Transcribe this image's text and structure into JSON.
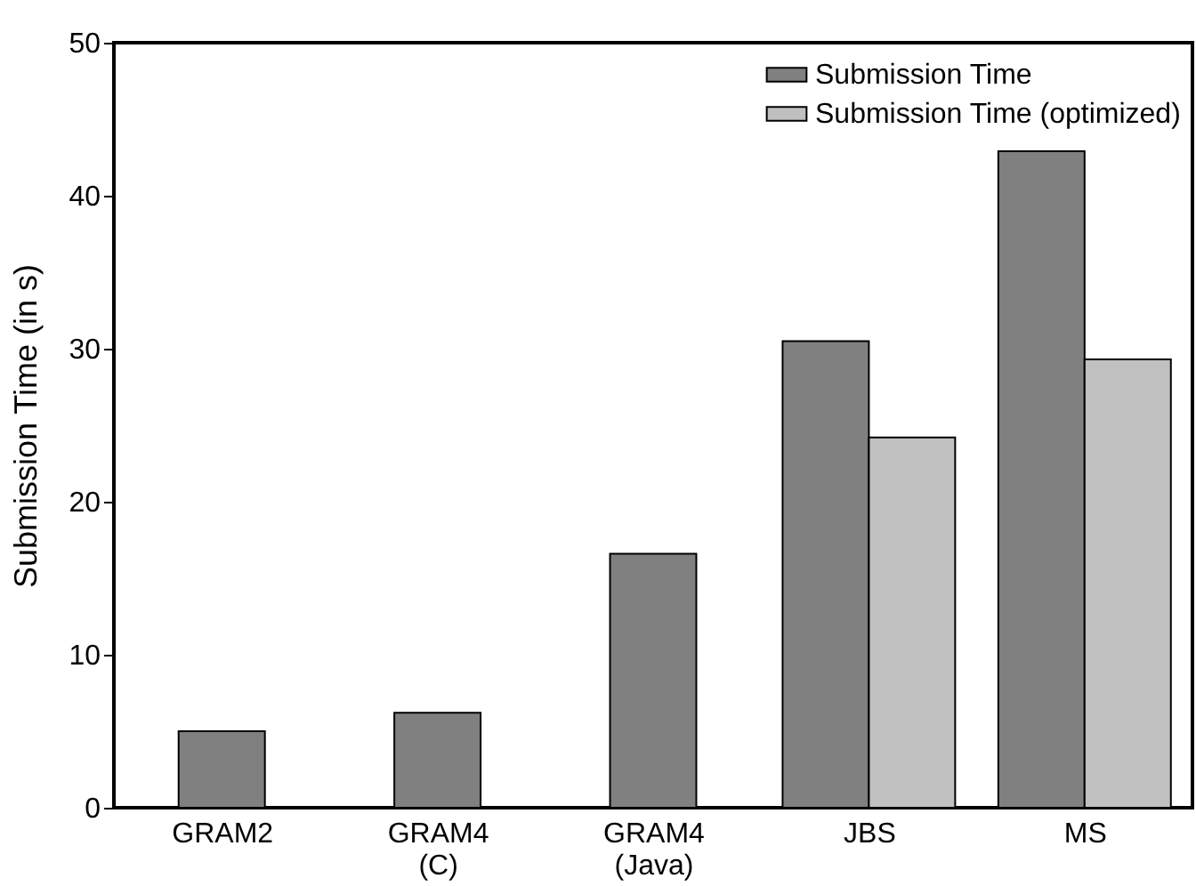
{
  "chart_data": {
    "type": "bar",
    "ylabel": "Submission Time (in s)",
    "categories": [
      "GRAM2",
      "GRAM4 (C)",
      "GRAM4 (Java)",
      "JBS",
      "MS"
    ],
    "series": [
      {
        "name": "Submission Time",
        "color": "#808080",
        "values": [
          5.0,
          6.2,
          16.6,
          30.5,
          42.9
        ]
      },
      {
        "name": "Submission Time (optimized)",
        "color": "#c0c0c0",
        "values": [
          null,
          null,
          null,
          24.2,
          29.3
        ]
      }
    ],
    "ylim": [
      0,
      50
    ],
    "yticks": [
      0,
      10,
      20,
      30,
      40,
      50
    ],
    "grid": false,
    "legend": "top right"
  }
}
